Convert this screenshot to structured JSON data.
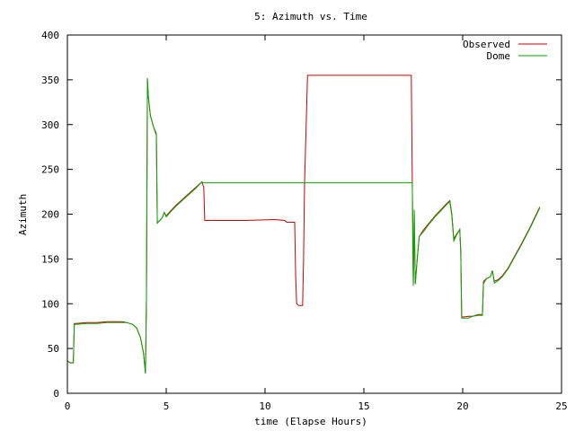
{
  "chart_data": {
    "type": "line",
    "title": "5: Azimuth vs. Time",
    "xlabel": "time (Elapse Hours)",
    "ylabel": "Azimuth",
    "xlim": [
      0,
      25
    ],
    "ylim": [
      0,
      400
    ],
    "xticks": [
      0,
      5,
      10,
      15,
      20,
      25
    ],
    "yticks": [
      0,
      50,
      100,
      150,
      200,
      250,
      300,
      350,
      400
    ],
    "grid": false,
    "legend_position": "top-right",
    "series": [
      {
        "name": "Observed",
        "color": "#cc0000",
        "points": [
          [
            0.0,
            36
          ],
          [
            0.15,
            34
          ],
          [
            0.3,
            34
          ],
          [
            0.35,
            78
          ],
          [
            0.45,
            78
          ],
          [
            1.0,
            79
          ],
          [
            1.5,
            79
          ],
          [
            2.0,
            80
          ],
          [
            2.5,
            80
          ],
          [
            2.8,
            80
          ],
          [
            3.0,
            79
          ],
          [
            3.3,
            77
          ],
          [
            3.5,
            73
          ],
          [
            3.7,
            62
          ],
          [
            3.85,
            45
          ],
          [
            3.95,
            23
          ],
          [
            4.0,
            105
          ],
          [
            4.05,
            350
          ],
          [
            4.1,
            330
          ],
          [
            4.2,
            310
          ],
          [
            4.35,
            298
          ],
          [
            4.5,
            290
          ],
          [
            4.55,
            190
          ],
          [
            4.8,
            196
          ],
          [
            4.9,
            202
          ],
          [
            5.0,
            198
          ],
          [
            5.2,
            203
          ],
          [
            5.5,
            210
          ],
          [
            6.0,
            220
          ],
          [
            6.5,
            230
          ],
          [
            6.8,
            236
          ],
          [
            6.9,
            230
          ],
          [
            6.95,
            193
          ],
          [
            7.5,
            193
          ],
          [
            9.0,
            193
          ],
          [
            10.5,
            194
          ],
          [
            11.0,
            193
          ],
          [
            11.1,
            191
          ],
          [
            11.5,
            191
          ],
          [
            11.55,
            130
          ],
          [
            11.6,
            100
          ],
          [
            11.7,
            98
          ],
          [
            11.9,
            98
          ],
          [
            11.95,
            150
          ],
          [
            12.0,
            235
          ],
          [
            12.1,
            315
          ],
          [
            12.15,
            355
          ],
          [
            14.0,
            355
          ],
          [
            16.0,
            355
          ],
          [
            17.4,
            355
          ],
          [
            17.45,
            235
          ],
          [
            17.5,
            120
          ],
          [
            17.55,
            200
          ],
          [
            17.6,
            122
          ],
          [
            17.7,
            150
          ],
          [
            17.8,
            175
          ],
          [
            18.0,
            182
          ],
          [
            18.3,
            190
          ],
          [
            18.6,
            198
          ],
          [
            18.9,
            205
          ],
          [
            19.2,
            212
          ],
          [
            19.35,
            215
          ],
          [
            19.45,
            200
          ],
          [
            19.55,
            172
          ],
          [
            19.7,
            178
          ],
          [
            19.85,
            183
          ],
          [
            19.9,
            160
          ],
          [
            19.95,
            85
          ],
          [
            20.3,
            86
          ],
          [
            20.5,
            86
          ],
          [
            20.8,
            88
          ],
          [
            21.0,
            88
          ],
          [
            21.05,
            125
          ],
          [
            21.2,
            128
          ],
          [
            21.4,
            130
          ],
          [
            21.5,
            137
          ],
          [
            21.6,
            125
          ],
          [
            21.8,
            127
          ],
          [
            22.0,
            131
          ],
          [
            22.3,
            140
          ],
          [
            22.6,
            152
          ],
          [
            23.0,
            168
          ],
          [
            23.4,
            185
          ],
          [
            23.9,
            208
          ]
        ]
      },
      {
        "name": "Dome",
        "color": "#00aa00",
        "points": [
          [
            0.0,
            36
          ],
          [
            0.15,
            34
          ],
          [
            0.3,
            34
          ],
          [
            0.35,
            77
          ],
          [
            0.45,
            77
          ],
          [
            1.0,
            78
          ],
          [
            1.5,
            78
          ],
          [
            2.0,
            79
          ],
          [
            2.5,
            79
          ],
          [
            2.8,
            79
          ],
          [
            3.0,
            79
          ],
          [
            3.3,
            77
          ],
          [
            3.5,
            73
          ],
          [
            3.7,
            62
          ],
          [
            3.85,
            45
          ],
          [
            3.95,
            22
          ],
          [
            4.0,
            105
          ],
          [
            4.05,
            352
          ],
          [
            4.1,
            330
          ],
          [
            4.2,
            310
          ],
          [
            4.35,
            298
          ],
          [
            4.5,
            288
          ],
          [
            4.55,
            190
          ],
          [
            4.8,
            196
          ],
          [
            4.9,
            202
          ],
          [
            5.0,
            197
          ],
          [
            5.2,
            202
          ],
          [
            5.5,
            209
          ],
          [
            6.0,
            219
          ],
          [
            6.5,
            229
          ],
          [
            6.8,
            236
          ],
          [
            6.9,
            235
          ],
          [
            9.0,
            235
          ],
          [
            12.0,
            235
          ],
          [
            15.0,
            235
          ],
          [
            17.4,
            235
          ],
          [
            17.45,
            235
          ],
          [
            17.5,
            120
          ],
          [
            17.55,
            205
          ],
          [
            17.6,
            122
          ],
          [
            17.7,
            150
          ],
          [
            17.8,
            175
          ],
          [
            18.0,
            180
          ],
          [
            18.3,
            189
          ],
          [
            18.6,
            197
          ],
          [
            18.9,
            204
          ],
          [
            19.2,
            211
          ],
          [
            19.35,
            214
          ],
          [
            19.45,
            198
          ],
          [
            19.55,
            170
          ],
          [
            19.7,
            177
          ],
          [
            19.85,
            183
          ],
          [
            19.9,
            158
          ],
          [
            19.95,
            84
          ],
          [
            20.3,
            84
          ],
          [
            20.5,
            86
          ],
          [
            20.8,
            87
          ],
          [
            21.0,
            87
          ],
          [
            21.05,
            122
          ],
          [
            21.2,
            128
          ],
          [
            21.4,
            130
          ],
          [
            21.5,
            137
          ],
          [
            21.6,
            123
          ],
          [
            21.8,
            126
          ],
          [
            22.0,
            130
          ],
          [
            22.3,
            139
          ],
          [
            22.6,
            151
          ],
          [
            23.0,
            167
          ],
          [
            23.4,
            184
          ],
          [
            23.9,
            207
          ]
        ]
      }
    ]
  }
}
